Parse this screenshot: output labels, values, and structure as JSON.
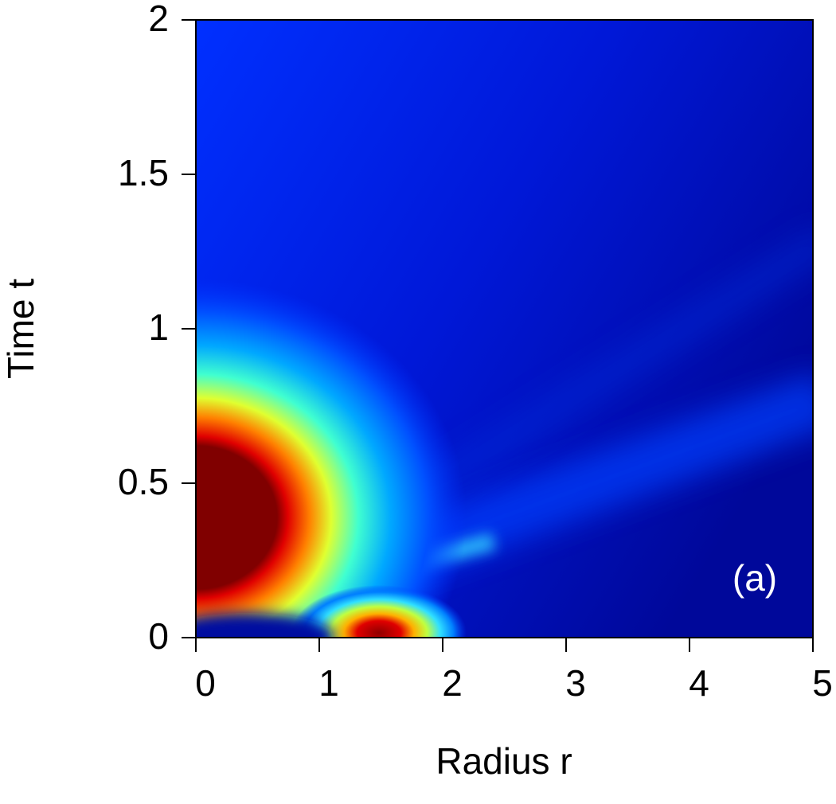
{
  "chart_data": {
    "type": "heatmap",
    "x_label": "Radius r",
    "y_label": "Time t",
    "annotation": "(a)",
    "xlim": [
      0,
      5
    ],
    "ylim": [
      0,
      2
    ],
    "xticks": [
      0,
      1,
      2,
      3,
      4,
      5
    ],
    "yticks": [
      0,
      0.5,
      1,
      1.5,
      2
    ]
  }
}
